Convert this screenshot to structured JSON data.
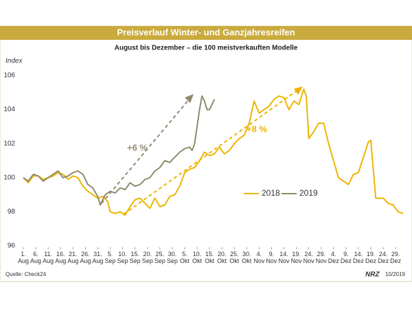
{
  "chart_data": {
    "type": "line",
    "title": "Preisverlauf Winter- und Ganzjahresreifen",
    "subtitle": "August bis Dezember – die 100 meistverkauften Modelle",
    "y_label": "Index",
    "source": "Quelle: Check24",
    "footer_logo": "NRZ",
    "footer_date": "10/2019",
    "annotations": [
      "+6 %",
      "+8 %"
    ],
    "xlim": [
      0,
      153
    ],
    "xticks": [
      {
        "value": 0,
        "label": "1. Aug"
      },
      {
        "value": 5,
        "label": "6. Aug"
      },
      {
        "value": 10,
        "label": "11. Aug"
      },
      {
        "value": 15,
        "label": "16. Aug"
      },
      {
        "value": 20,
        "label": "21. Aug"
      },
      {
        "value": 25,
        "label": "26. Aug"
      },
      {
        "value": 30,
        "label": "31. Aug"
      },
      {
        "value": 35,
        "label": "5. Sep"
      },
      {
        "value": 40,
        "label": "10. Sep"
      },
      {
        "value": 45,
        "label": "15. Sep"
      },
      {
        "value": 50,
        "label": "20. Sep"
      },
      {
        "value": 55,
        "label": "25. Sep"
      },
      {
        "value": 60,
        "label": "30. Sep"
      },
      {
        "value": 65,
        "label": "5. Okt"
      },
      {
        "value": 70,
        "label": "10. Okt"
      },
      {
        "value": 75,
        "label": "15. Okt"
      },
      {
        "value": 80,
        "label": "20. Okt"
      },
      {
        "value": 85,
        "label": "25. Okt"
      },
      {
        "value": 90,
        "label": "30. Okt"
      },
      {
        "value": 95,
        "label": "4. Nov"
      },
      {
        "value": 100,
        "label": "9. Nov"
      },
      {
        "value": 105,
        "label": "14. Nov"
      },
      {
        "value": 110,
        "label": "19. Nov"
      },
      {
        "value": 115,
        "label": "24. Nov"
      },
      {
        "value": 120,
        "label": "29. Nov"
      },
      {
        "value": 125,
        "label": "4. Dez"
      },
      {
        "value": 130,
        "label": "9. Dez"
      },
      {
        "value": 135,
        "label": "14. Dez"
      },
      {
        "value": 140,
        "label": "19. Dez"
      },
      {
        "value": 145,
        "label": "24. Dez"
      },
      {
        "value": 150,
        "label": "29. Dez"
      }
    ],
    "ylim": [
      96,
      106
    ],
    "yticks": [
      96,
      98,
      100,
      102,
      104,
      106
    ],
    "grid": false,
    "legend": "center",
    "series": [
      {
        "name": "2018",
        "color": "#eeb400",
        "x": [
          0,
          2,
          4,
          6,
          8,
          10,
          12,
          14,
          16,
          18,
          20,
          22,
          24,
          26,
          28,
          30,
          32,
          34,
          35,
          37,
          39,
          41,
          43,
          45,
          47,
          49,
          51,
          53,
          55,
          57,
          59,
          61,
          63,
          65,
          67,
          69,
          71,
          73,
          75,
          77,
          79,
          81,
          83,
          85,
          87,
          89,
          91,
          93,
          95,
          97,
          99,
          101,
          103,
          105,
          107,
          109,
          111,
          113,
          114,
          115,
          117,
          119,
          121,
          123,
          125,
          127,
          129,
          131,
          133,
          135,
          137,
          139,
          140,
          142,
          145,
          147,
          149,
          151,
          153
        ],
        "values": [
          100.0,
          99.7,
          100.1,
          100.1,
          99.9,
          100.0,
          100.1,
          100.3,
          100.2,
          99.9,
          100.1,
          100.0,
          99.5,
          99.2,
          99.0,
          98.8,
          98.9,
          98.6,
          98.0,
          97.9,
          98.0,
          97.8,
          98.3,
          98.7,
          98.8,
          98.5,
          98.2,
          98.8,
          98.3,
          98.4,
          98.9,
          99.0,
          99.5,
          100.3,
          100.5,
          100.6,
          101.0,
          101.5,
          101.3,
          101.4,
          101.8,
          101.4,
          101.6,
          102.0,
          102.3,
          102.5,
          103.2,
          104.5,
          103.8,
          104.0,
          104.2,
          104.6,
          104.8,
          104.7,
          104.0,
          104.5,
          104.3,
          105.2,
          104.8,
          102.3,
          102.7,
          103.2,
          103.2,
          102.0,
          101.0,
          100.0,
          99.8,
          99.6,
          100.2,
          100.3,
          101.2,
          102.1,
          102.2,
          98.8,
          98.8,
          98.5,
          98.4,
          98.0,
          97.9
        ]
      },
      {
        "name": "2019",
        "color": "#8e8b6c",
        "x": [
          0,
          2,
          4,
          6,
          8,
          10,
          12,
          14,
          16,
          18,
          20,
          22,
          24,
          26,
          28,
          30,
          31,
          33,
          35,
          37,
          39,
          41,
          43,
          45,
          47,
          49,
          51,
          53,
          55,
          57,
          59,
          61,
          63,
          65,
          67,
          68,
          69,
          70,
          71,
          72,
          73,
          74,
          75,
          77
        ],
        "values": [
          100.0,
          99.8,
          100.2,
          100.1,
          99.8,
          100.0,
          100.2,
          100.4,
          100.0,
          100.1,
          100.3,
          100.4,
          100.2,
          99.6,
          99.4,
          98.9,
          98.4,
          99.0,
          99.2,
          99.1,
          99.4,
          99.3,
          99.7,
          99.5,
          99.6,
          99.9,
          100.0,
          100.4,
          100.6,
          101.0,
          100.9,
          101.2,
          101.5,
          101.7,
          101.8,
          101.6,
          102.0,
          103.0,
          104.0,
          104.8,
          104.5,
          104.0,
          104.0,
          104.6
        ]
      }
    ]
  }
}
